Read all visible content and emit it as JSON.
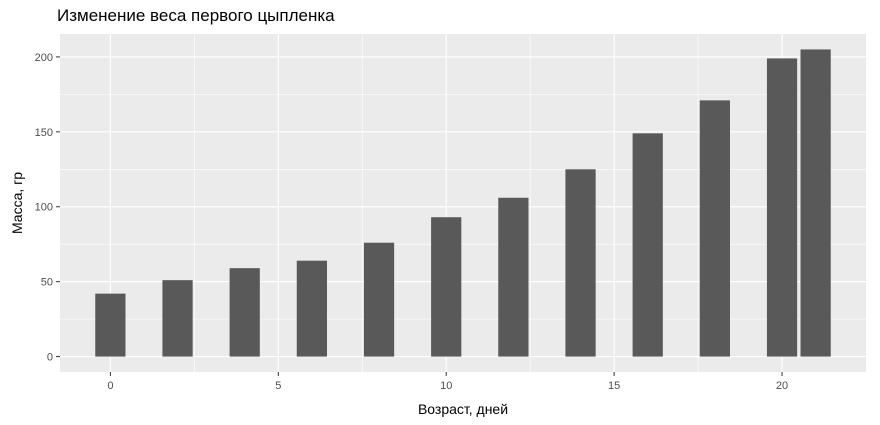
{
  "chart_data": {
    "type": "bar",
    "title": "Изменение веса первого цыпленка",
    "xlabel": "Возраст, дней",
    "ylabel": "Масса, гр",
    "x": [
      0,
      2,
      4,
      6,
      8,
      10,
      12,
      14,
      16,
      18,
      20,
      21
    ],
    "values": [
      42,
      51,
      59,
      64,
      76,
      93,
      106,
      125,
      149,
      171,
      199,
      205
    ],
    "xlim": [
      -1.5,
      22.5
    ],
    "ylim": [
      -10.3,
      215.3
    ],
    "xticks": [
      0,
      5,
      10,
      15,
      20
    ],
    "yticks": [
      0,
      50,
      100,
      150,
      200
    ],
    "grid": true,
    "colors": {
      "panel": "#ebebeb",
      "grid": "#ffffff",
      "bar": "#595959",
      "tick": "#333333"
    }
  }
}
